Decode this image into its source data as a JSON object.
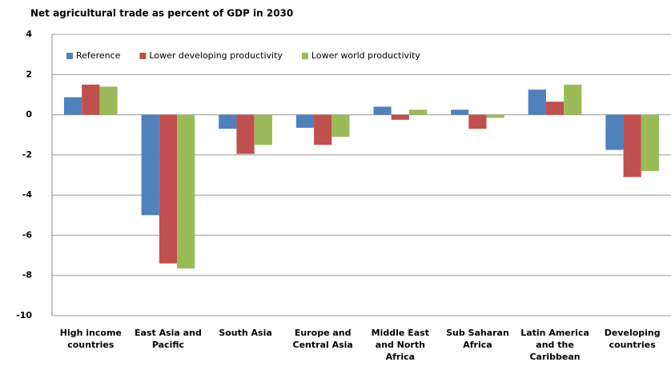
{
  "chart_data": {
    "type": "bar",
    "title": "Net agricultural trade as percent of GDP in 2030",
    "categories": [
      "High income countries",
      "East Asia and Pacific",
      "South Asia",
      "Europe and Central Asia",
      "Middle East and North Africa",
      "Sub Saharan Africa",
      "Latin America and the Caribbean",
      "Developing countries"
    ],
    "series": [
      {
        "name": "Reference",
        "color": "#4f81bd",
        "values": [
          0.87,
          -5.0,
          -0.7,
          -0.65,
          0.4,
          0.25,
          1.25,
          -1.75
        ]
      },
      {
        "name": "Lower developing productivity",
        "color": "#c0504d",
        "values": [
          1.5,
          -7.4,
          -1.95,
          -1.5,
          -0.25,
          -0.7,
          0.65,
          -3.1
        ]
      },
      {
        "name": "Lower world productivity",
        "color": "#9bbb59",
        "values": [
          1.4,
          -7.65,
          -1.5,
          -1.1,
          0.25,
          -0.15,
          1.5,
          -2.8
        ]
      }
    ],
    "ylim": [
      -10,
      4
    ],
    "yticks": [
      -10,
      -8,
      -6,
      -4,
      -2,
      0,
      2,
      4
    ],
    "grid": true,
    "legend": "top-left"
  }
}
